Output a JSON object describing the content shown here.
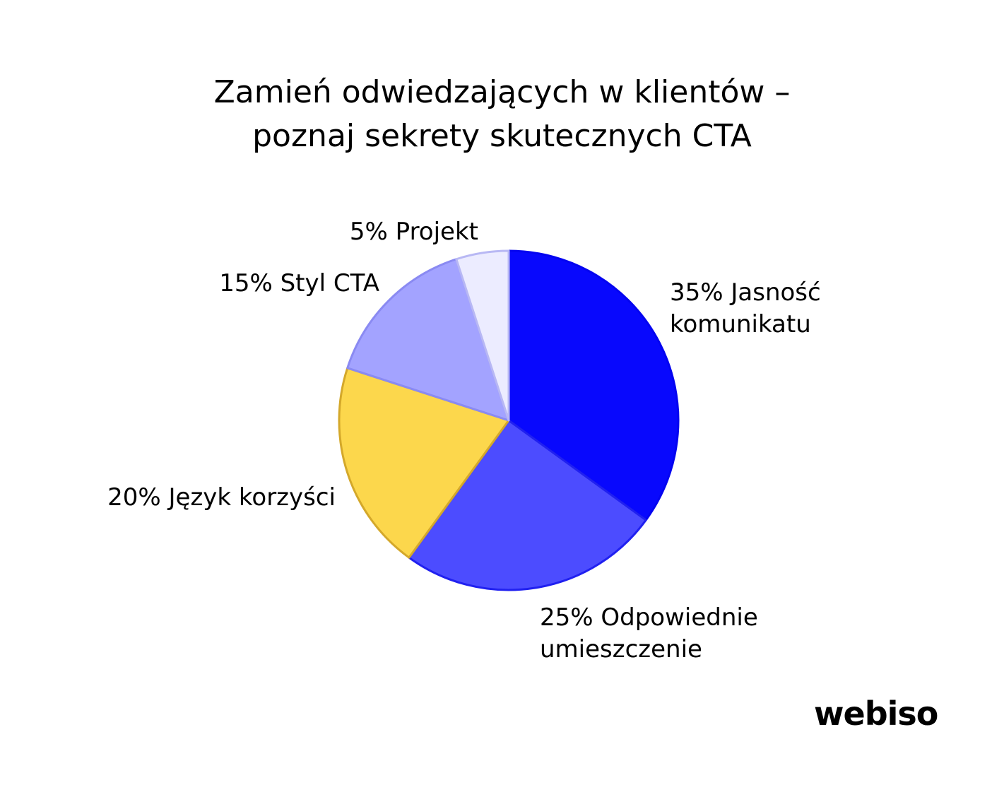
{
  "title_lines": [
    "Zamień odwiedzających w klientów –",
    "poznaj sekrety skutecznych CTA"
  ],
  "logo": "webiso",
  "chart_data": {
    "type": "pie",
    "title": "Zamień odwiedzających w klientów – poznaj sekrety skutecznych CTA",
    "start_angle_deg": 0,
    "direction": "clockwise",
    "legend": "none",
    "slices": [
      {
        "value": 35,
        "label_lines": [
          "35% Jasność",
          "komunikatu"
        ],
        "color": "#0808FD",
        "stroke": "#0404F0"
      },
      {
        "value": 25,
        "label_lines": [
          "25% Odpowiednie",
          "umieszczenie"
        ],
        "color": "#4C4CFF",
        "stroke": "#2020F0"
      },
      {
        "value": 20,
        "label_lines": [
          "20% Język korzyści"
        ],
        "color": "#FCD74C",
        "stroke": "#D4A82A"
      },
      {
        "value": 15,
        "label_lines": [
          "15% Styl CTA"
        ],
        "color": "#A3A3FF",
        "stroke": "#8A8AF2"
      },
      {
        "value": 5,
        "label_lines": [
          "5% Projekt"
        ],
        "color": "#ECECFF",
        "stroke": "#B8B8F4"
      }
    ]
  }
}
